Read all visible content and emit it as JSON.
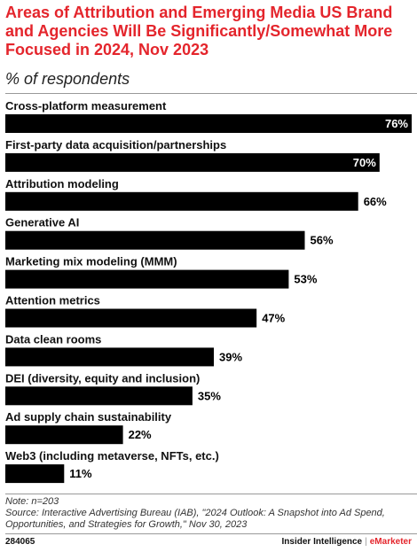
{
  "header": {
    "title": "Areas of Attribution and Emerging Media US Brand and Agencies Will Be Significantly/Somewhat More Focused in 2024, Nov 2023",
    "subtitle": "% of respondents"
  },
  "chart_data": {
    "type": "bar",
    "orientation": "horizontal",
    "title": "Areas of Attribution and Emerging Media US Brand and Agencies Will Be Significantly/Somewhat More Focused in 2024, Nov 2023",
    "subtitle": "% of respondents",
    "categories": [
      "Cross-platform measurement",
      "First-party data acquisition/partnerships",
      "Attribution modeling",
      "Generative AI",
      "Marketing mix modeling (MMM)",
      "Attention metrics",
      "Data clean rooms",
      "DEI (diversity, equity and inclusion)",
      "Ad supply chain sustainability",
      "Web3 (including metaverse, NFTs, etc.)"
    ],
    "values": [
      76,
      70,
      66,
      56,
      53,
      47,
      39,
      35,
      22,
      11
    ],
    "value_labels": [
      "76%",
      "70%",
      "66%",
      "56%",
      "53%",
      "47%",
      "39%",
      "35%",
      "22%",
      "11%"
    ],
    "unit": "%",
    "xlim": [
      0,
      76
    ],
    "grid": false,
    "legend": "none",
    "bar_color": "#000000"
  },
  "footer": {
    "note": "Note: n=203",
    "source": "Source: Interactive Advertising Bureau (IAB), \"2024 Outlook: A Snapshot into Ad Spend, Opportunities, and Strategies for Growth,\" Nov 30, 2023",
    "chart_id": "284065",
    "brand_left": "Insider Intelligence",
    "brand_sep": "|",
    "brand_right": "eMarketer"
  },
  "colors": {
    "title": "#e4252c",
    "bar": "#000000",
    "value_inside": "#ffffff",
    "value_outside": "#000000"
  }
}
